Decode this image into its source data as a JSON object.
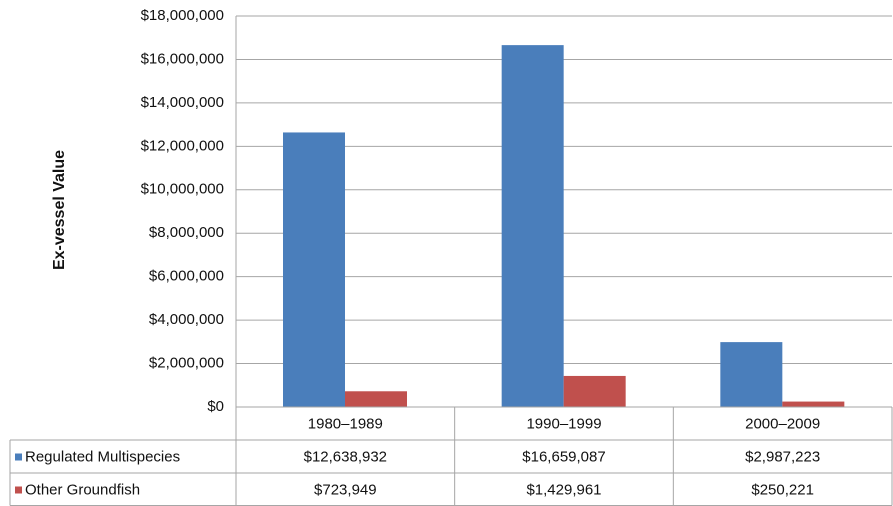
{
  "chart_data": {
    "type": "bar",
    "y_label": "Ex-vessel Value",
    "categories": [
      "1980–1989",
      "1990–1999",
      "2000–2009"
    ],
    "series": [
      {
        "name": "Regulated Multispecies",
        "color": "#4a7ebb",
        "values": [
          12638932,
          16659087,
          2987223
        ],
        "value_labels": [
          "$12,638,932",
          "$16,659,087",
          "$2,987,223"
        ]
      },
      {
        "name": "Other Groundfish",
        "color": "#c0504d",
        "values": [
          723949,
          1429961,
          250221
        ],
        "value_labels": [
          "$723,949",
          "$1,429,961",
          "$250,221"
        ]
      }
    ],
    "ylim": [
      0,
      18000000
    ],
    "yticks": [
      {
        "value": 0,
        "label": "$0"
      },
      {
        "value": 2000000,
        "label": "$2,000,000"
      },
      {
        "value": 4000000,
        "label": "$4,000,000"
      },
      {
        "value": 6000000,
        "label": "$6,000,000"
      },
      {
        "value": 8000000,
        "label": "$8,000,000"
      },
      {
        "value": 10000000,
        "label": "$10,000,000"
      },
      {
        "value": 12000000,
        "label": "$12,000,000"
      },
      {
        "value": 14000000,
        "label": "$14,000,000"
      },
      {
        "value": 16000000,
        "label": "$16,000,000"
      },
      {
        "value": 18000000,
        "label": "$18,000,000"
      }
    ],
    "grid": true
  }
}
